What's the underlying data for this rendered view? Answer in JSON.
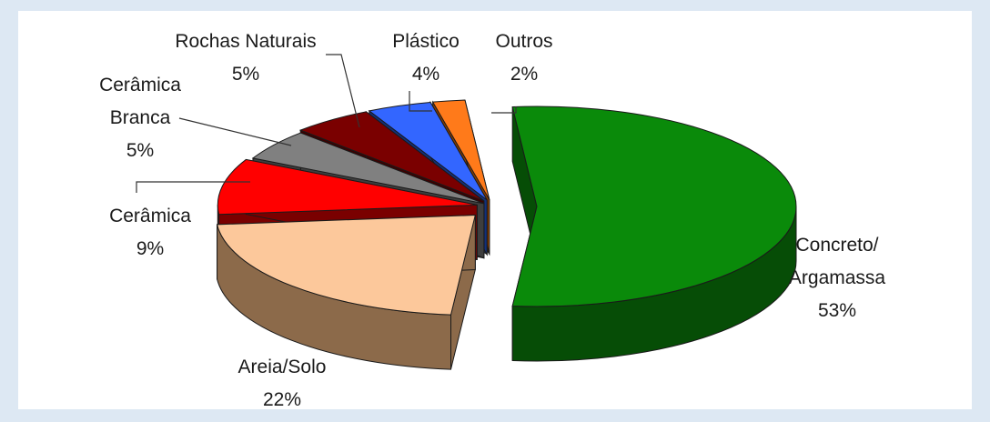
{
  "chart_data": {
    "type": "pie",
    "title": "",
    "style": "3d-exploded",
    "legend": "none",
    "slices": [
      {
        "label": [
          "Concreto/",
          "Argamassa"
        ],
        "value": 53,
        "pct_text": "53%",
        "color": "#0a8a0a",
        "side": "#064d06"
      },
      {
        "label": [
          "Areia/Solo"
        ],
        "value": 22,
        "pct_text": "22%",
        "color": "#fcc89b",
        "side": "#8c6a4a"
      },
      {
        "label": [
          "Cerâmica"
        ],
        "value": 9,
        "pct_text": "9%",
        "color": "#ff0000",
        "side": "#7a0000"
      },
      {
        "label": [
          "Cerâmica",
          "Branca"
        ],
        "value": 5,
        "pct_text": "5%",
        "color": "#808080",
        "side": "#3e3e3e"
      },
      {
        "label": [
          "Rochas Naturais"
        ],
        "value": 5,
        "pct_text": "5%",
        "color": "#7a0000",
        "side": "#3d0000"
      },
      {
        "label": [
          "Plástico"
        ],
        "value": 4,
        "pct_text": "4%",
        "color": "#3366ff",
        "side": "#12307a"
      },
      {
        "label": [
          "Outros"
        ],
        "value": 2,
        "pct_text": "2%",
        "color": "#ff7a1a",
        "side": "#8a3d00"
      }
    ]
  }
}
